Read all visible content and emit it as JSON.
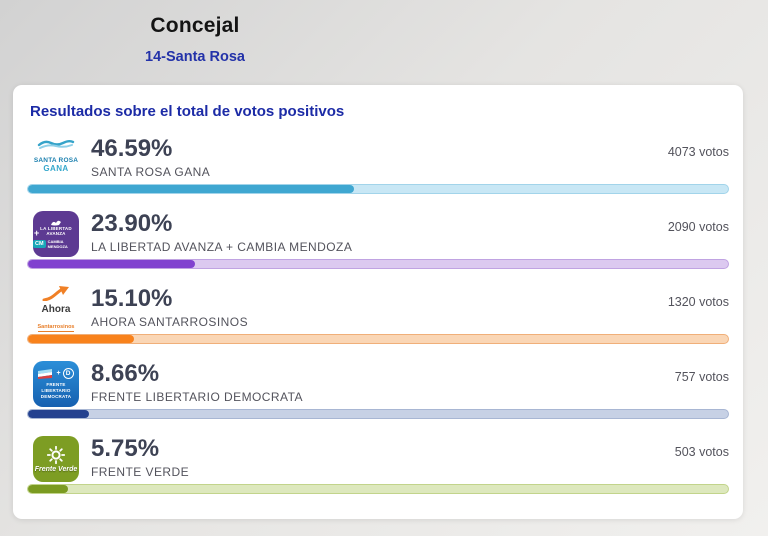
{
  "header": {
    "title": "Concejal",
    "subtitle": "14-Santa Rosa"
  },
  "card": {
    "title": "Resultados sobre el total de votos positivos"
  },
  "results": [
    {
      "pct": "46.59%",
      "value": 46.59,
      "party": "SANTA ROSA GANA",
      "votes": "4073 votos",
      "bar": {
        "fill": "#3fa7d1",
        "track": "#c8e7f5",
        "border": "#a2d4ea"
      },
      "logo": {
        "line1": "SANTA ROSA",
        "line2": "GANA"
      }
    },
    {
      "pct": "23.90%",
      "value": 23.9,
      "party": "LA LIBERTAD AVANZA + CAMBIA MENDOZA",
      "votes": "2090 votos",
      "bar": {
        "fill": "#8142cf",
        "track": "#dcc9f0",
        "border": "#c0a3e2"
      },
      "logo": {
        "plus": "+",
        "line1": "LA LIBERTAD AVANZA",
        "chip": "CM",
        "line2": "CAMBIA MENDOZA"
      }
    },
    {
      "pct": "15.10%",
      "value": 15.1,
      "party": "AHORA SANTARROSINOS",
      "votes": "1320 votos",
      "bar": {
        "fill": "#f8821c",
        "track": "#fad6b5",
        "border": "#f0af79"
      },
      "logo": {
        "line1": "Ahora",
        "line2": "Santarrosinos"
      }
    },
    {
      "pct": "8.66%",
      "value": 8.66,
      "party": "FRENTE LIBERTARIO DEMOCRATA",
      "votes": "757 votos",
      "bar": {
        "fill": "#24418f",
        "track": "#c7d1e5",
        "border": "#a8b6d3"
      },
      "logo": {
        "line1": "FRENTE LIBERTARIO",
        "line2": "DEMOCRATA"
      }
    },
    {
      "pct": "5.75%",
      "value": 5.75,
      "party": "FRENTE VERDE",
      "votes": "503 votos",
      "bar": {
        "fill": "#7b9b21",
        "track": "#dde8bd",
        "border": "#c2d48b"
      },
      "logo": {
        "line1": "Frente Verde"
      }
    }
  ]
}
